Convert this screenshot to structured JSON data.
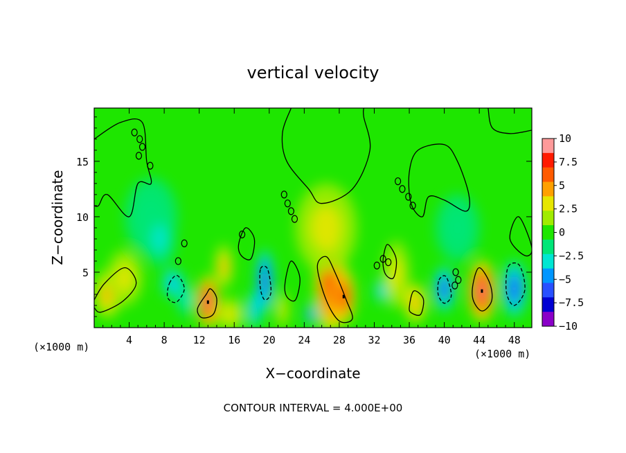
{
  "chart_data": {
    "type": "heatmap",
    "title": "vertical velocity",
    "xlabel": "X−coordinate",
    "ylabel": "Z−coordinate",
    "x_unit_left": "(×1000 m)",
    "x_unit_right": "(×1000 m)",
    "footer": "CONTOUR INTERVAL = 4.000E+00",
    "xlim": [
      0,
      50
    ],
    "ylim": [
      0,
      19.8
    ],
    "x_ticks": [
      4,
      8,
      12,
      16,
      20,
      24,
      28,
      32,
      36,
      40,
      44,
      48
    ],
    "y_ticks": [
      5,
      10,
      15
    ],
    "background_value": 0.4,
    "colorbar": {
      "range": [
        -10,
        10
      ],
      "ticks": [
        "10",
        "7.5",
        "5",
        "2.5",
        "0",
        "−2.5",
        "−5",
        "−7.5",
        "−10"
      ],
      "tick_values": [
        10,
        7.5,
        5,
        2.5,
        0,
        -2.5,
        -5,
        -7.5,
        -10
      ],
      "colors": [
        "#ff9a9a",
        "#ff1a00",
        "#ff5a00",
        "#ffa000",
        "#e6e600",
        "#a0ec00",
        "#1ee600",
        "#00e678",
        "#00e6d2",
        "#0096ff",
        "#2850ff",
        "#0000d2",
        "#8a00c8"
      ]
    },
    "features": [
      {
        "x": 1.5,
        "z": 3.0,
        "w": 1.6,
        "h": 2.2,
        "value": 4
      },
      {
        "x": 3.5,
        "z": 4.5,
        "w": 2.0,
        "h": 2.5,
        "value": 3
      },
      {
        "x": 6.5,
        "z": 10.0,
        "w": 3.0,
        "h": 3.5,
        "value": -1.5
      },
      {
        "x": 7.5,
        "z": 8.0,
        "w": 1.8,
        "h": 2.5,
        "value": -2.5
      },
      {
        "x": 9.0,
        "z": 4.0,
        "w": 1.2,
        "h": 1.3,
        "value": -5
      },
      {
        "x": 10.5,
        "z": 2.5,
        "w": 1.0,
        "h": 1.5,
        "value": -3
      },
      {
        "x": 13.0,
        "z": 2.3,
        "w": 1.2,
        "h": 2.4,
        "value": 9
      },
      {
        "x": 14.8,
        "z": 5.5,
        "w": 1.0,
        "h": 2.0,
        "value": 4
      },
      {
        "x": 15.5,
        "z": 1.2,
        "w": 1.6,
        "h": 1.5,
        "value": 3
      },
      {
        "x": 18.3,
        "z": 1.6,
        "w": 0.8,
        "h": 1.6,
        "value": -4.5
      },
      {
        "x": 19.5,
        "z": 4.2,
        "w": 1.0,
        "h": 2.8,
        "value": -6.5
      },
      {
        "x": 21.5,
        "z": 1.6,
        "w": 0.7,
        "h": 1.7,
        "value": 3
      },
      {
        "x": 24.8,
        "z": 1.2,
        "w": 0.6,
        "h": 1.0,
        "value": -6
      },
      {
        "x": 27.0,
        "z": 4.0,
        "w": 1.8,
        "h": 4.5,
        "value": 7.5
      },
      {
        "x": 28.5,
        "z": 2.8,
        "w": 1.3,
        "h": 2.5,
        "value": 8
      },
      {
        "x": 26.5,
        "z": 9.0,
        "w": 3.5,
        "h": 4.0,
        "value": 2.5
      },
      {
        "x": 32.8,
        "z": 3.3,
        "w": 0.7,
        "h": 1.0,
        "value": -5
      },
      {
        "x": 34.5,
        "z": 4.8,
        "w": 1.5,
        "h": 3.0,
        "value": 2.5
      },
      {
        "x": 36.7,
        "z": 2.2,
        "w": 1.2,
        "h": 1.7,
        "value": 5
      },
      {
        "x": 40.0,
        "z": 3.5,
        "w": 1.2,
        "h": 2.0,
        "value": -5.5
      },
      {
        "x": 41.5,
        "z": 9.0,
        "w": 2.5,
        "h": 3.0,
        "value": -1.5
      },
      {
        "x": 44.3,
        "z": 3.3,
        "w": 1.5,
        "h": 2.8,
        "value": 9
      },
      {
        "x": 48.0,
        "z": 3.5,
        "w": 1.4,
        "h": 2.5,
        "value": -6
      }
    ],
    "contours": [
      {
        "style": "solid",
        "points": [
          [
            0,
            17
          ],
          [
            3,
            18.5
          ],
          [
            5.5,
            18.5
          ],
          [
            6,
            15
          ],
          [
            6.5,
            13
          ],
          [
            5,
            13
          ],
          [
            4,
            10
          ],
          [
            1.5,
            12
          ],
          [
            0.5,
            11
          ],
          [
            0,
            11
          ]
        ]
      },
      {
        "style": "solid",
        "points": [
          [
            0,
            2.5
          ],
          [
            1.2,
            4.0
          ],
          [
            3.5,
            5.4
          ],
          [
            4.8,
            4.0
          ],
          [
            3.3,
            2.4
          ],
          [
            0.8,
            1.4
          ],
          [
            0,
            1.8
          ]
        ]
      },
      {
        "style": "solid",
        "points": [
          [
            12.8,
            3.0
          ],
          [
            11.8,
            1.7
          ],
          [
            12.3,
            0.9
          ],
          [
            13.6,
            1.2
          ],
          [
            14,
            2.6
          ],
          [
            13.3,
            3.5
          ]
        ]
      },
      {
        "style": "solid",
        "points": [
          [
            25.5,
            5.5
          ],
          [
            26.5,
            6.4
          ],
          [
            27.5,
            5.0
          ],
          [
            28.8,
            2.5
          ],
          [
            29.5,
            0.8
          ],
          [
            28,
            0.6
          ],
          [
            26.5,
            2.5
          ]
        ]
      },
      {
        "style": "solid",
        "points": [
          [
            43.3,
            4.0
          ],
          [
            44.0,
            5.4
          ],
          [
            45.2,
            4.0
          ],
          [
            45.4,
            2.4
          ],
          [
            44.3,
            1.5
          ],
          [
            43.3,
            2.5
          ]
        ]
      },
      {
        "style": "solid",
        "points": [
          [
            36.0,
            1.8
          ],
          [
            36.5,
            3.3
          ],
          [
            37.6,
            2.6
          ],
          [
            37.3,
            1.2
          ],
          [
            36.3,
            1.3
          ]
        ]
      },
      {
        "style": "dashed",
        "points": [
          [
            8.6,
            4.0
          ],
          [
            9.5,
            4.7
          ],
          [
            10.3,
            3.5
          ],
          [
            9.4,
            2.3
          ],
          [
            8.4,
            2.7
          ]
        ]
      },
      {
        "style": "dashed",
        "points": [
          [
            19.0,
            5.3
          ],
          [
            19.8,
            5.3
          ],
          [
            20.2,
            3.2
          ],
          [
            19.5,
            2.5
          ],
          [
            19.0,
            3.5
          ]
        ]
      },
      {
        "style": "dashed",
        "points": [
          [
            39.4,
            4.3
          ],
          [
            40.2,
            4.6
          ],
          [
            40.8,
            2.9
          ],
          [
            40.0,
            2.2
          ],
          [
            39.3,
            3.0
          ]
        ]
      },
      {
        "style": "dashed",
        "points": [
          [
            47.3,
            5.5
          ],
          [
            48.6,
            5.6
          ],
          [
            49.2,
            3.4
          ],
          [
            48.0,
            2.0
          ],
          [
            47.1,
            3.2
          ]
        ]
      },
      {
        "style": "solid",
        "points": [
          [
            22.5,
            19.8
          ],
          [
            21.5,
            17.5
          ],
          [
            22.0,
            15.0
          ],
          [
            24.5,
            12.5
          ],
          [
            26.0,
            11.2
          ],
          [
            29.5,
            12.5
          ],
          [
            31.5,
            16.0
          ],
          [
            30.8,
            19.0
          ],
          [
            30.8,
            19.8
          ]
        ]
      },
      {
        "style": "solid",
        "points": [
          [
            36.0,
            14.0
          ],
          [
            37.0,
            16.0
          ],
          [
            40.0,
            16.5
          ],
          [
            41.5,
            15.0
          ],
          [
            42.8,
            12.0
          ],
          [
            42.5,
            10.5
          ],
          [
            40.0,
            11.5
          ],
          [
            38.2,
            11.8
          ],
          [
            37.5,
            10.0
          ],
          [
            36.2,
            11.2
          ]
        ]
      },
      {
        "style": "solid",
        "points": [
          [
            45.0,
            19.8
          ],
          [
            45.5,
            18.0
          ],
          [
            47.5,
            17.5
          ],
          [
            50,
            17.8
          ]
        ]
      },
      {
        "style": "solid",
        "points": [
          [
            48.5,
            10.0
          ],
          [
            47.5,
            8.0
          ],
          [
            49.2,
            6.5
          ],
          [
            50,
            7.2
          ]
        ]
      },
      {
        "style": "solid",
        "points": [
          [
            16.5,
            7.5
          ],
          [
            17.3,
            9.0
          ],
          [
            18.3,
            8.0
          ],
          [
            17.9,
            6.2
          ],
          [
            16.8,
            6.5
          ]
        ]
      },
      {
        "style": "solid",
        "points": [
          [
            21.8,
            4.0
          ],
          [
            22.5,
            6.0
          ],
          [
            23.5,
            4.5
          ],
          [
            23.0,
            2.5
          ],
          [
            22.0,
            2.8
          ]
        ]
      },
      {
        "style": "solid",
        "points": [
          [
            33.0,
            6.0
          ],
          [
            33.5,
            7.5
          ],
          [
            34.5,
            6.2
          ],
          [
            34.2,
            4.5
          ],
          [
            33.3,
            4.8
          ]
        ]
      }
    ],
    "small_loops": [
      [
        4.6,
        17.6
      ],
      [
        5.2,
        17.0
      ],
      [
        5.5,
        16.3
      ],
      [
        5.1,
        15.5
      ],
      [
        6.4,
        14.6
      ],
      [
        21.7,
        12.0
      ],
      [
        22.1,
        11.2
      ],
      [
        22.5,
        10.5
      ],
      [
        22.9,
        9.8
      ],
      [
        34.7,
        13.2
      ],
      [
        35.2,
        12.5
      ],
      [
        35.9,
        11.8
      ],
      [
        36.4,
        11.0
      ],
      [
        33.0,
        6.2
      ],
      [
        33.6,
        5.9
      ],
      [
        32.3,
        5.6
      ],
      [
        41.3,
        5.0
      ],
      [
        41.6,
        4.3
      ],
      [
        41.2,
        3.8
      ],
      [
        9.6,
        6.0
      ],
      [
        10.3,
        7.6
      ],
      [
        16.9,
        8.4
      ]
    ],
    "center_marks": [
      [
        13.0,
        2.3
      ],
      [
        28.5,
        2.8
      ],
      [
        44.3,
        3.3
      ]
    ]
  }
}
